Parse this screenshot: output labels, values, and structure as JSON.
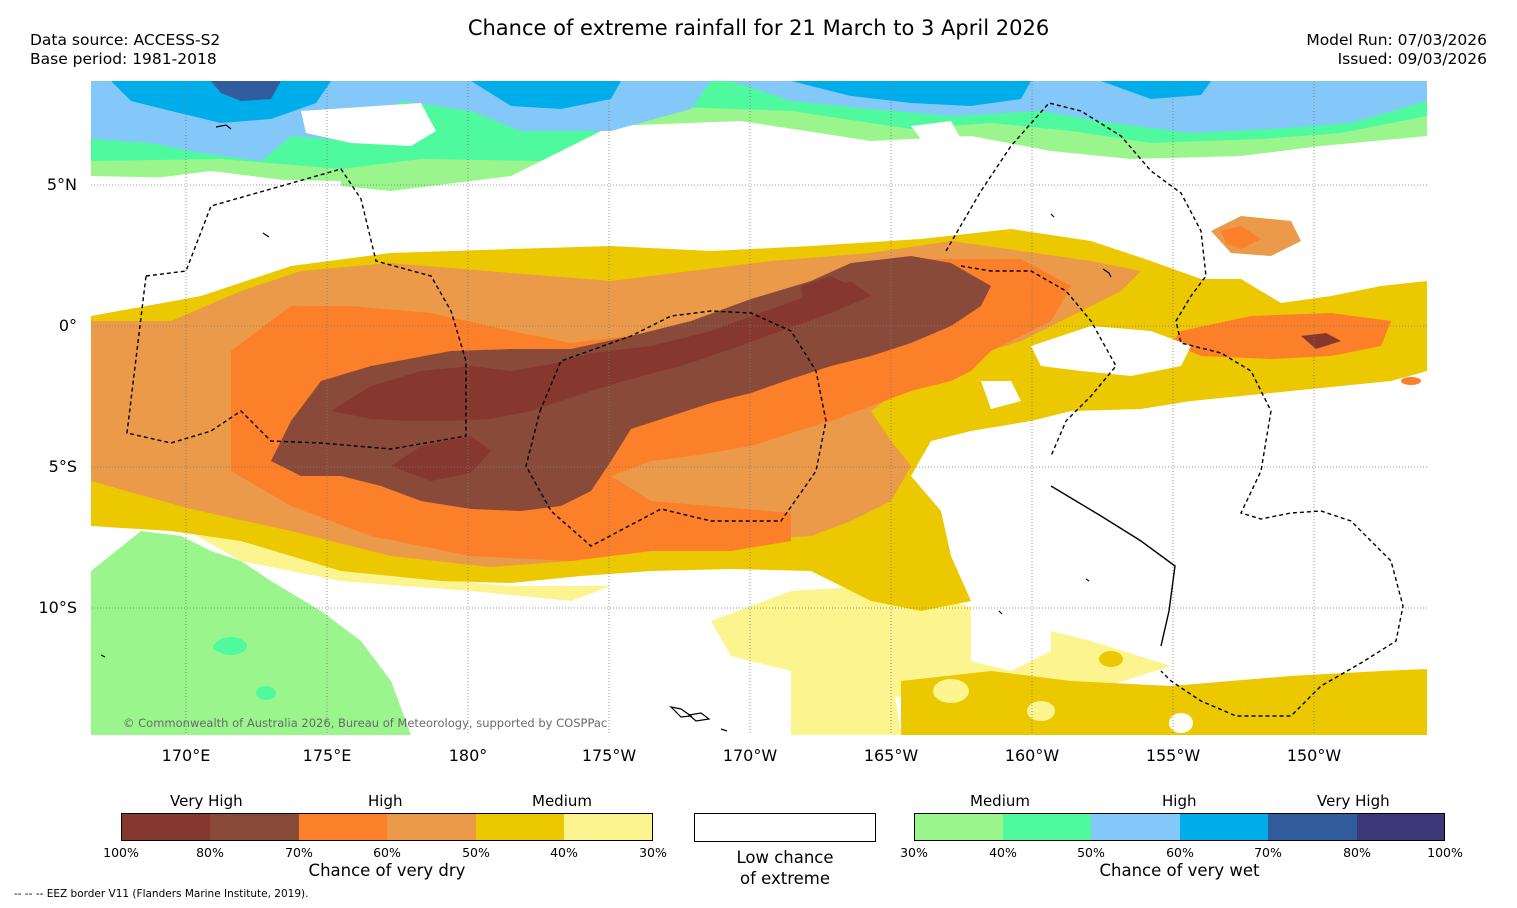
{
  "title": "Chance of extreme rainfall for 21 March to 3 April 2026",
  "source": {
    "data_source": "Data source: ACCESS-S2",
    "base_period": "Base period: 1981-2018"
  },
  "run": {
    "model_run": "Model Run: 07/03/2026",
    "issued": "Issued: 09/03/2026"
  },
  "map": {
    "lat_labels": [
      "5°N",
      "0°",
      "5°S",
      "10°S"
    ],
    "lon_labels": [
      "170°E",
      "175°E",
      "180°",
      "175°W",
      "170°W",
      "165°W",
      "160°W",
      "155°W",
      "150°W"
    ],
    "copyright": "© Commonwealth of Australia 2026, Bureau of Meteorology, supported by COSPPac"
  },
  "dry_scale": {
    "headings": [
      "Very High",
      "High",
      "Medium"
    ],
    "ticks": [
      "100%",
      "80%",
      "70%",
      "60%",
      "50%",
      "40%",
      "30%"
    ],
    "label": "Chance of very dry",
    "colors": [
      "#87382e",
      "#8a4a3a",
      "#fc7f2a",
      "#ea9a48",
      "#ebc800",
      "#fcf48f"
    ]
  },
  "neutral": {
    "label_line1": "Low chance",
    "label_line2": "of extreme"
  },
  "wet_scale": {
    "headings": [
      "Medium",
      "High",
      "Very High"
    ],
    "ticks": [
      "30%",
      "40%",
      "50%",
      "60%",
      "70%",
      "80%",
      "100%"
    ],
    "label": "Chance of very wet",
    "colors": [
      "#9af68c",
      "#4ffa9e",
      "#84c8fa",
      "#00adeb",
      "#315d9c",
      "#3b3878"
    ]
  },
  "footnote": "--  --  -- EEZ border V11 (Flanders Marine Institute, 2019).",
  "colors": {
    "very_high_dry": "#87382e",
    "very_high_dry_b": "#8a4a3a",
    "high_dry": "#fc7f2a",
    "high_dry_b": "#ea9a48",
    "medium_dry": "#ebc800",
    "medium_dry_b": "#fcf48f",
    "medium_wet": "#9af68c",
    "medium_wet_b": "#4ffa9e",
    "high_wet": "#84c8fa",
    "high_wet_b": "#00adeb",
    "very_high_wet": "#315d9c",
    "very_high_wet_b": "#3b3878"
  }
}
